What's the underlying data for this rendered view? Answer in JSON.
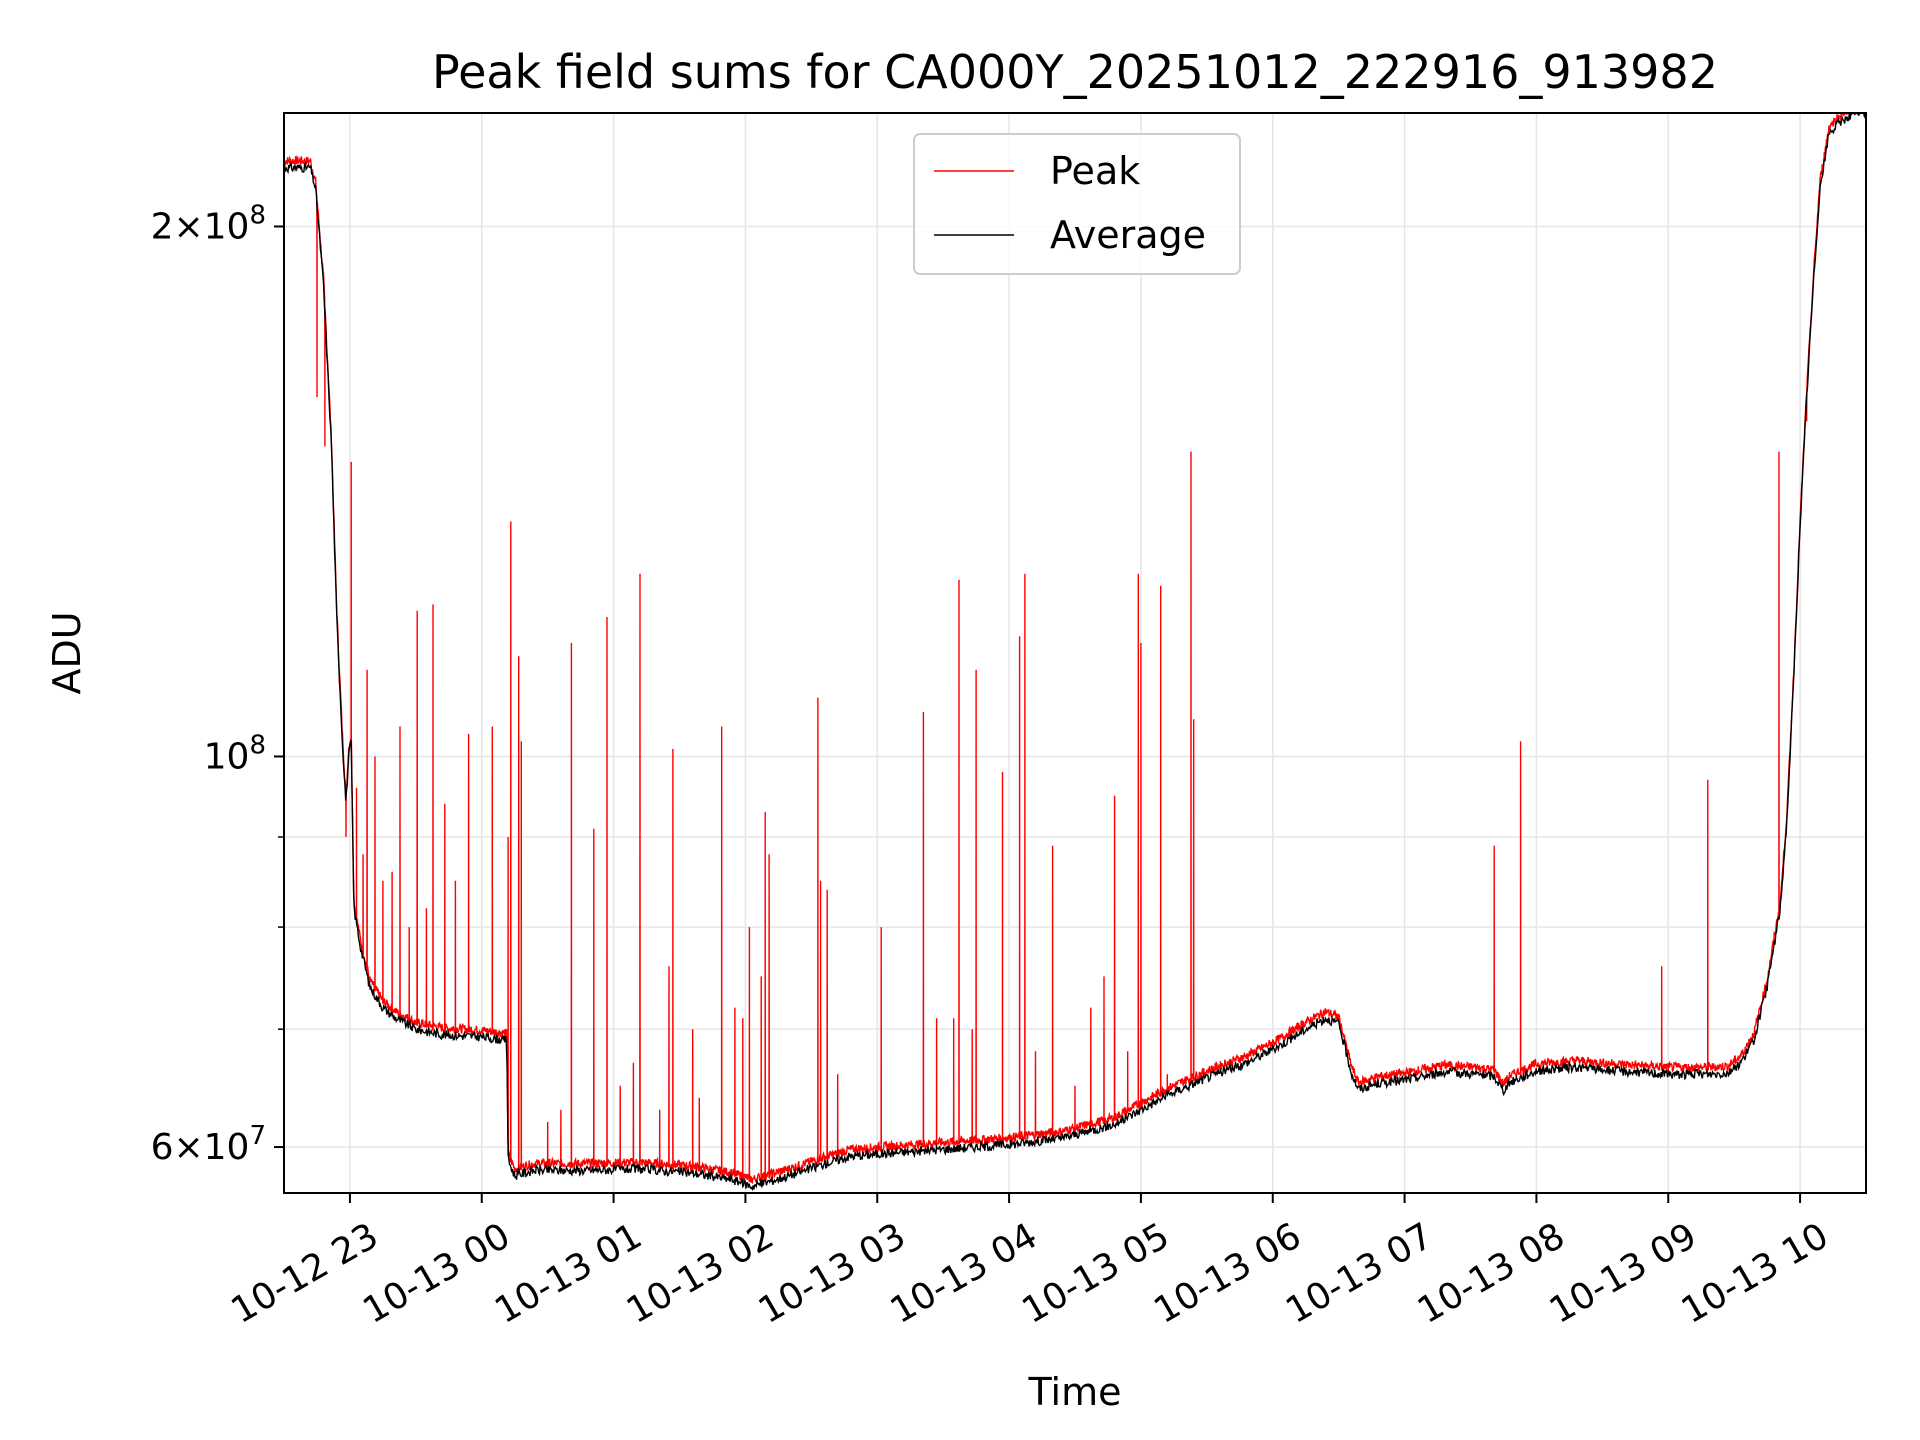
{
  "chart_data": {
    "type": "line",
    "title": "Peak field sums for CA000Y_20251012_222916_913982",
    "xlabel": "Time",
    "ylabel": "ADU",
    "y_scale": "log",
    "x_unit": "hours since 10-12 22:00",
    "xlim": [
      0.5,
      12.5
    ],
    "ylim": [
      56500000,
      232000000
    ],
    "grid": true,
    "legend_position": "top-center",
    "x_ticks": [
      {
        "value": 1,
        "label": "10-12 23"
      },
      {
        "value": 2,
        "label": "10-13 00"
      },
      {
        "value": 3,
        "label": "10-13 01"
      },
      {
        "value": 4,
        "label": "10-13 02"
      },
      {
        "value": 5,
        "label": "10-13 03"
      },
      {
        "value": 6,
        "label": "10-13 04"
      },
      {
        "value": 7,
        "label": "10-13 05"
      },
      {
        "value": 8,
        "label": "10-13 06"
      },
      {
        "value": 9,
        "label": "10-13 07"
      },
      {
        "value": 10,
        "label": "10-13 08"
      },
      {
        "value": 11,
        "label": "10-13 09"
      },
      {
        "value": 12,
        "label": "10-13 10"
      }
    ],
    "y_ticks": [
      {
        "value": 60000000,
        "mantissa": "6",
        "exponent": "7"
      },
      {
        "value": 100000000,
        "mantissa": "",
        "exponent": "8"
      },
      {
        "value": 200000000,
        "mantissa": "2",
        "exponent": "8"
      }
    ],
    "y_minor_grid": [
      70000000,
      80000000,
      90000000
    ],
    "series": [
      {
        "name": "Peak",
        "color": "#ff0000",
        "baseline_source": "Average",
        "spikes": [
          [
            0.75,
            160000000
          ],
          [
            0.81,
            150000000
          ],
          [
            0.92,
            110000000
          ],
          [
            0.97,
            90000000
          ],
          [
            1.01,
            147000000
          ],
          [
            1.05,
            96000000
          ],
          [
            1.1,
            88000000
          ],
          [
            1.13,
            112000000
          ],
          [
            1.19,
            100000000
          ],
          [
            1.25,
            85000000
          ],
          [
            1.32,
            86000000
          ],
          [
            1.38,
            104000000
          ],
          [
            1.45,
            80000000
          ],
          [
            1.51,
            121000000
          ],
          [
            1.58,
            82000000
          ],
          [
            1.63,
            122000000
          ],
          [
            1.72,
            94000000
          ],
          [
            1.8,
            85000000
          ],
          [
            1.9,
            103000000
          ],
          [
            2.08,
            104000000
          ],
          [
            2.2,
            90000000
          ],
          [
            2.22,
            136000000
          ],
          [
            2.28,
            114000000
          ],
          [
            2.3,
            102000000
          ],
          [
            2.5,
            62000000
          ],
          [
            2.6,
            63000000
          ],
          [
            2.68,
            116000000
          ],
          [
            2.85,
            91000000
          ],
          [
            2.95,
            120000000
          ],
          [
            3.05,
            65000000
          ],
          [
            3.15,
            67000000
          ],
          [
            3.2,
            127000000
          ],
          [
            3.35,
            63000000
          ],
          [
            3.42,
            76000000
          ],
          [
            3.45,
            101000000
          ],
          [
            3.6,
            70000000
          ],
          [
            3.65,
            64000000
          ],
          [
            3.82,
            104000000
          ],
          [
            3.92,
            72000000
          ],
          [
            3.98,
            71000000
          ],
          [
            4.03,
            80000000
          ],
          [
            4.12,
            75000000
          ],
          [
            4.15,
            93000000
          ],
          [
            4.18,
            88000000
          ],
          [
            4.55,
            108000000
          ],
          [
            4.57,
            85000000
          ],
          [
            4.62,
            84000000
          ],
          [
            4.7,
            66000000
          ],
          [
            5.03,
            80000000
          ],
          [
            5.35,
            106000000
          ],
          [
            5.45,
            71000000
          ],
          [
            5.58,
            71000000
          ],
          [
            5.62,
            126000000
          ],
          [
            5.72,
            70000000
          ],
          [
            5.75,
            112000000
          ],
          [
            5.95,
            98000000
          ],
          [
            6.08,
            117000000
          ],
          [
            6.12,
            127000000
          ],
          [
            6.2,
            68000000
          ],
          [
            6.33,
            89000000
          ],
          [
            6.5,
            65000000
          ],
          [
            6.62,
            72000000
          ],
          [
            6.72,
            75000000
          ],
          [
            6.8,
            95000000
          ],
          [
            6.9,
            68000000
          ],
          [
            6.98,
            127000000
          ],
          [
            7.0,
            116000000
          ],
          [
            7.15,
            125000000
          ],
          [
            7.2,
            66000000
          ],
          [
            7.38,
            149000000
          ],
          [
            7.4,
            105000000
          ],
          [
            9.68,
            89000000
          ],
          [
            9.88,
            102000000
          ],
          [
            10.95,
            76000000
          ],
          [
            11.3,
            97000000
          ],
          [
            11.84,
            149000000
          ],
          [
            12.05,
            155000000
          ]
        ]
      },
      {
        "name": "Average",
        "color": "#000000",
        "points": [
          [
            0.5,
            216000000
          ],
          [
            0.7,
            216000000
          ],
          [
            0.74,
            210000000
          ],
          [
            0.8,
            185000000
          ],
          [
            0.86,
            150000000
          ],
          [
            0.9,
            120000000
          ],
          [
            0.94,
            103000000
          ],
          [
            0.97,
            94000000
          ],
          [
            0.99,
            100000000
          ],
          [
            1.01,
            102000000
          ],
          [
            1.03,
            82000000
          ],
          [
            1.08,
            78000000
          ],
          [
            1.15,
            74000000
          ],
          [
            1.25,
            72000000
          ],
          [
            1.35,
            71000000
          ],
          [
            1.5,
            70000000
          ],
          [
            1.7,
            69500000
          ],
          [
            2.0,
            69300000
          ],
          [
            2.19,
            69000000
          ],
          [
            2.2,
            59000000
          ],
          [
            2.25,
            57800000
          ],
          [
            2.4,
            58200000
          ],
          [
            2.8,
            58200000
          ],
          [
            3.2,
            58300000
          ],
          [
            3.6,
            58000000
          ],
          [
            3.9,
            57500000
          ],
          [
            4.05,
            57000000
          ],
          [
            4.3,
            57700000
          ],
          [
            4.6,
            58700000
          ],
          [
            4.8,
            59300000
          ],
          [
            5.2,
            59600000
          ],
          [
            5.6,
            59900000
          ],
          [
            6.0,
            60200000
          ],
          [
            6.4,
            60700000
          ],
          [
            6.8,
            61800000
          ],
          [
            7.0,
            63000000
          ],
          [
            7.2,
            64200000
          ],
          [
            7.5,
            65700000
          ],
          [
            7.8,
            67000000
          ],
          [
            8.05,
            68500000
          ],
          [
            8.25,
            70000000
          ],
          [
            8.4,
            71000000
          ],
          [
            8.5,
            70500000
          ],
          [
            8.6,
            66000000
          ],
          [
            8.65,
            64700000
          ],
          [
            8.8,
            65200000
          ],
          [
            9.0,
            65500000
          ],
          [
            9.3,
            66200000
          ],
          [
            9.55,
            66000000
          ],
          [
            9.68,
            65800000
          ],
          [
            9.75,
            64600000
          ],
          [
            9.8,
            65300000
          ],
          [
            10.0,
            66300000
          ],
          [
            10.3,
            66600000
          ],
          [
            10.6,
            66300000
          ],
          [
            11.0,
            66000000
          ],
          [
            11.3,
            66000000
          ],
          [
            11.45,
            66100000
          ],
          [
            11.55,
            67000000
          ],
          [
            11.65,
            69000000
          ],
          [
            11.75,
            74000000
          ],
          [
            11.85,
            82000000
          ],
          [
            11.9,
            92000000
          ],
          [
            11.95,
            110000000
          ],
          [
            12.0,
            135000000
          ],
          [
            12.05,
            160000000
          ],
          [
            12.1,
            185000000
          ],
          [
            12.15,
            210000000
          ],
          [
            12.22,
            226000000
          ],
          [
            12.3,
            229000000
          ],
          [
            12.4,
            232000000
          ]
        ]
      }
    ]
  }
}
